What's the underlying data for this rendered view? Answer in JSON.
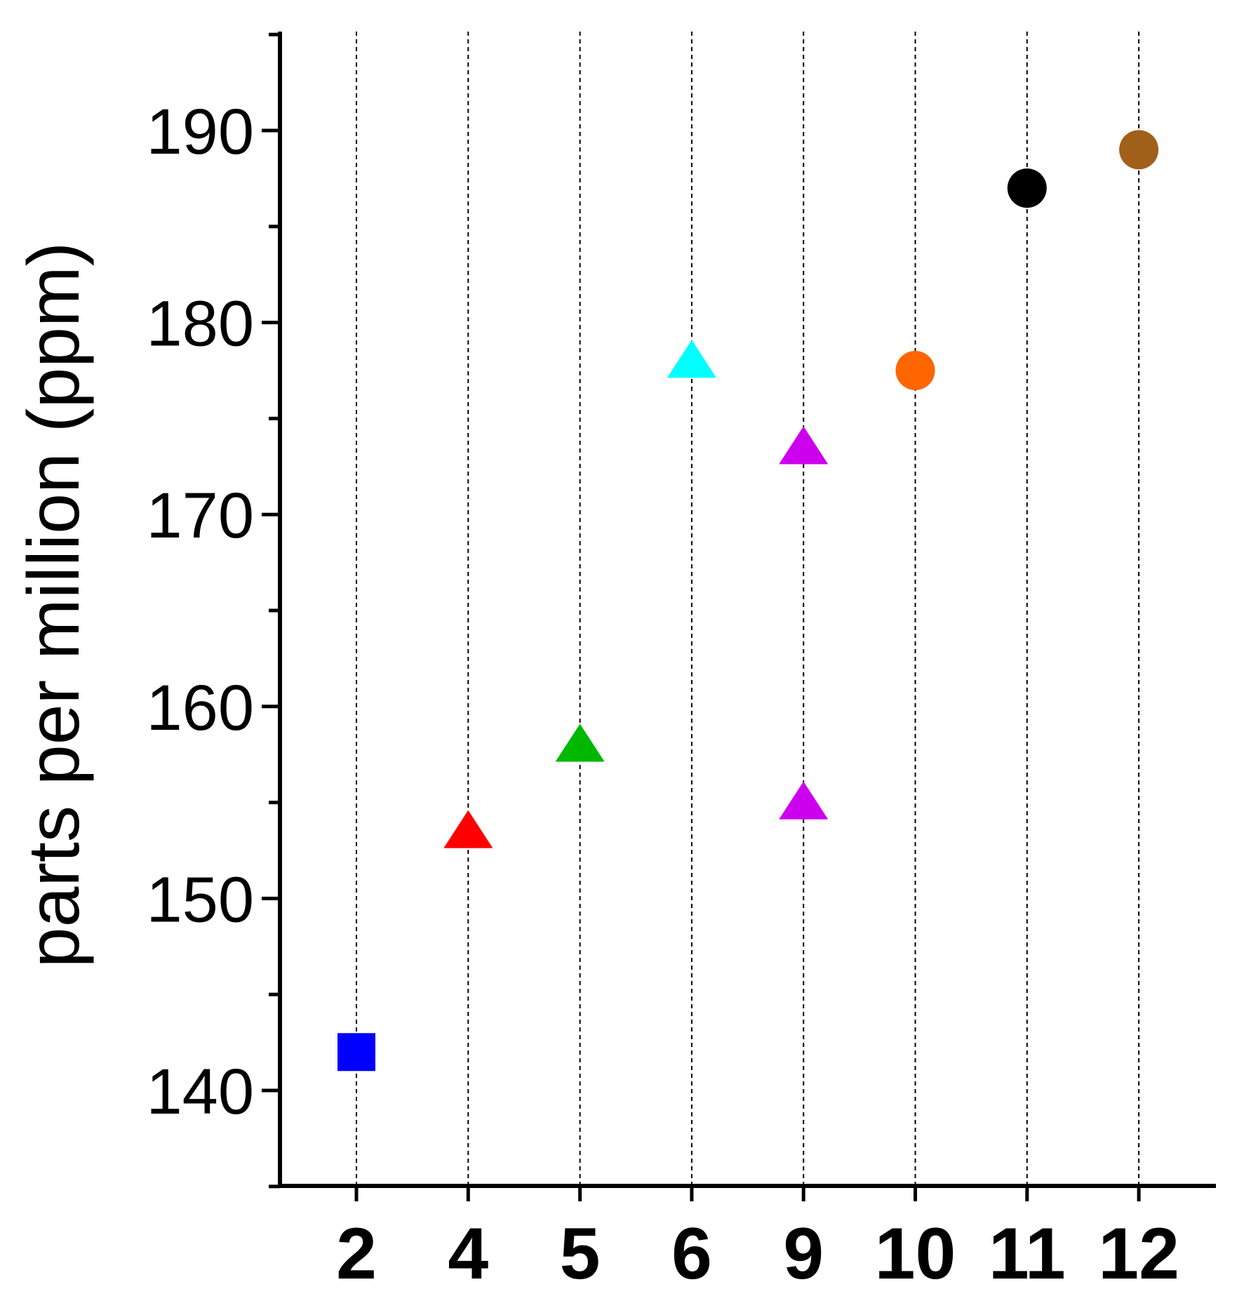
{
  "chart_data": {
    "type": "scatter",
    "title": "",
    "xlabel": "",
    "ylabel": "parts per million (ppm)",
    "categories": [
      "2",
      "4",
      "5",
      "6",
      "9",
      "10",
      "11",
      "12"
    ],
    "ylim": [
      135,
      195
    ],
    "yticks": [
      140,
      150,
      160,
      170,
      180,
      190
    ],
    "grid": "vertical dashed lines at each category",
    "legend": "none",
    "points": [
      {
        "category": "2",
        "value": 142.0,
        "marker": "square",
        "color": "#0000ff"
      },
      {
        "category": "4",
        "value": 153.5,
        "marker": "triangle",
        "color": "#ff0000"
      },
      {
        "category": "5",
        "value": 158.0,
        "marker": "triangle",
        "color": "#00b800"
      },
      {
        "category": "6",
        "value": 178.0,
        "marker": "triangle",
        "color": "#00ffff"
      },
      {
        "category": "9",
        "value": 173.5,
        "marker": "triangle",
        "color": "#cc00ee"
      },
      {
        "category": "9",
        "value": 155.0,
        "marker": "triangle",
        "color": "#cc00ee"
      },
      {
        "category": "10",
        "value": 177.5,
        "marker": "circle",
        "color": "#ff6600"
      },
      {
        "category": "11",
        "value": 187.0,
        "marker": "circle",
        "color": "#000000"
      },
      {
        "category": "12",
        "value": 189.0,
        "marker": "circle",
        "color": "#a0601a"
      }
    ]
  }
}
